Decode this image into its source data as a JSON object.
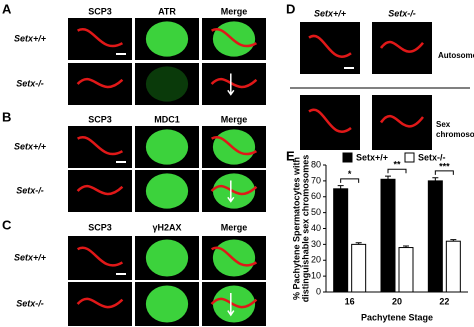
{
  "panels": {
    "A": {
      "label": "A",
      "columns": [
        "SCP3",
        "ATR",
        "Merge"
      ],
      "rows": [
        "Setx+/+",
        "Setx-/-"
      ]
    },
    "B": {
      "label": "B",
      "columns": [
        "SCP3",
        "MDC1",
        "Merge"
      ],
      "rows": [
        "Setx+/+",
        "Setx-/-"
      ]
    },
    "C": {
      "label": "C",
      "columns": [
        "SCP3",
        "γH2AX",
        "Merge"
      ],
      "rows": [
        "Setx+/+",
        "Setx-/-"
      ]
    },
    "D": {
      "label": "D",
      "columns": [
        "Setx+/+",
        "Setx-/-"
      ],
      "rows": [
        "Autosomes",
        "Sex chromosomes"
      ]
    },
    "E": {
      "label": "E"
    }
  },
  "chart_data": {
    "type": "bar",
    "ylabel": [
      "% Pachytene Spermatocytes with",
      "distinguishable sex chromosomes"
    ],
    "xlabel": "Pachytene Stage",
    "categories": [
      "16",
      "20",
      "22"
    ],
    "series": [
      {
        "name": "Setx+/+",
        "color": "#000000",
        "values": [
          65,
          71,
          70
        ],
        "errors": [
          2,
          2,
          2
        ]
      },
      {
        "name": "Setx-/-",
        "color": "#ffffff",
        "values": [
          30,
          28,
          32
        ],
        "errors": [
          1,
          1,
          1
        ]
      }
    ],
    "annotations": [
      "*",
      "**",
      "***"
    ],
    "ylim": [
      0,
      80
    ],
    "yticks": [
      0,
      10,
      20,
      30,
      40,
      50,
      60,
      70,
      80
    ]
  }
}
